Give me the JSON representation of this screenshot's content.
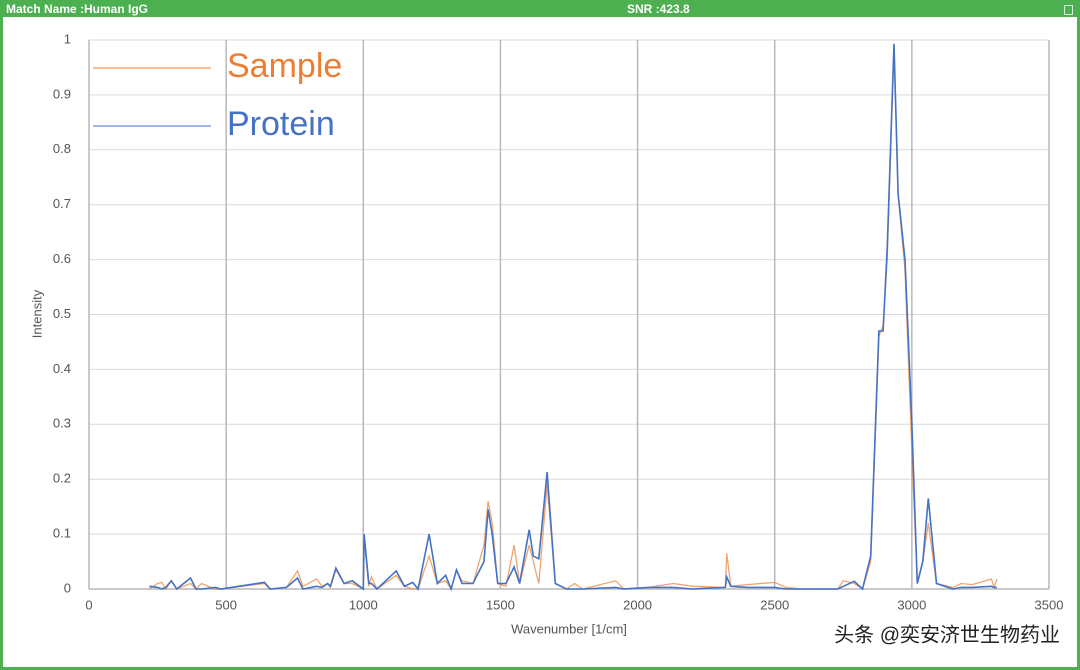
{
  "window": {
    "title": "Match Name :Human IgG",
    "snr": "SNR :423.8"
  },
  "watermark": "头条 @奕安济世生物药业",
  "chart_data": {
    "type": "line",
    "xlabel": "Wavenumber [1/cm]",
    "ylabel": "Intensity",
    "xlim": [
      0,
      3500
    ],
    "ylim": [
      0,
      1
    ],
    "xticks": [
      0,
      500,
      1000,
      1500,
      2000,
      2500,
      3000,
      3500
    ],
    "yticks": [
      0,
      0.1,
      0.2,
      0.3,
      0.4,
      0.5,
      0.6,
      0.7,
      0.8,
      0.9,
      1
    ],
    "grid": true,
    "legend": "upper left",
    "x": [
      220,
      250,
      265,
      280,
      300,
      320,
      370,
      390,
      410,
      460,
      480,
      640,
      660,
      720,
      760,
      780,
      830,
      850,
      870,
      880,
      900,
      930,
      960,
      1000,
      1003,
      1020,
      1030,
      1050,
      1120,
      1150,
      1180,
      1200,
      1240,
      1270,
      1300,
      1320,
      1340,
      1360,
      1400,
      1440,
      1455,
      1470,
      1490,
      1520,
      1550,
      1570,
      1605,
      1620,
      1640,
      1670,
      1700,
      1740,
      1770,
      1800,
      1920,
      1950,
      2040,
      2130,
      2200,
      2320,
      2325,
      2340,
      2400,
      2500,
      2540,
      2600,
      2730,
      2750,
      2790,
      2820,
      2850,
      2880,
      2895,
      2910,
      2935,
      2950,
      2975,
      3000,
      3020,
      3040,
      3060,
      3090,
      3150,
      3180,
      3220,
      3290,
      3300,
      3310
    ],
    "series": [
      {
        "name": "Sample",
        "color": "#ed7d31",
        "values": [
          0,
          0.01,
          0.012,
          0,
          0.015,
          0,
          0.01,
          0,
          0.01,
          0,
          0,
          0.01,
          0,
          0.003,
          0.033,
          0.005,
          0.018,
          0.005,
          0.01,
          0.003,
          0.035,
          0.01,
          0.01,
          0,
          0.09,
          0.005,
          0.022,
          0,
          0.025,
          0.005,
          0,
          0,
          0.06,
          0.01,
          0.015,
          0,
          0.035,
          0.015,
          0.01,
          0.08,
          0.16,
          0.12,
          0.01,
          0.005,
          0.08,
          0.01,
          0.08,
          0.05,
          0.01,
          0.19,
          0.01,
          0,
          0.01,
          0,
          0.015,
          0,
          0.003,
          0.01,
          0.005,
          0.003,
          0.065,
          0.005,
          0.008,
          0.012,
          0.003,
          0,
          0,
          0.015,
          0.01,
          0,
          0.05,
          0.46,
          0.48,
          0.6,
          0.99,
          0.72,
          0.58,
          0.25,
          0.01,
          0.05,
          0.12,
          0.01,
          0.003,
          0.01,
          0.008,
          0.018,
          0.003,
          0.018
        ]
      },
      {
        "name": "Protein",
        "color": "#4472c4",
        "values": [
          0.005,
          0.003,
          0,
          0.003,
          0.015,
          0,
          0.02,
          0,
          0,
          0.003,
          0,
          0.012,
          0,
          0.003,
          0.02,
          0,
          0.005,
          0.003,
          0.01,
          0.005,
          0.038,
          0.01,
          0.015,
          0,
          0.1,
          0.01,
          0.01,
          0,
          0.033,
          0.005,
          0.012,
          0,
          0.1,
          0.01,
          0.025,
          0,
          0.035,
          0.01,
          0.01,
          0.05,
          0.145,
          0.1,
          0.01,
          0.01,
          0.04,
          0.01,
          0.108,
          0.06,
          0.055,
          0.213,
          0.01,
          0,
          0,
          0,
          0.003,
          0,
          0.003,
          0.003,
          0,
          0.003,
          0.022,
          0.005,
          0.003,
          0.003,
          0,
          0,
          0,
          0.005,
          0.014,
          0,
          0.06,
          0.47,
          0.47,
          0.62,
          0.993,
          0.72,
          0.6,
          0.3,
          0.01,
          0.05,
          0.165,
          0.01,
          0,
          0.003,
          0.003,
          0.005,
          0.003,
          0.003
        ]
      }
    ]
  }
}
